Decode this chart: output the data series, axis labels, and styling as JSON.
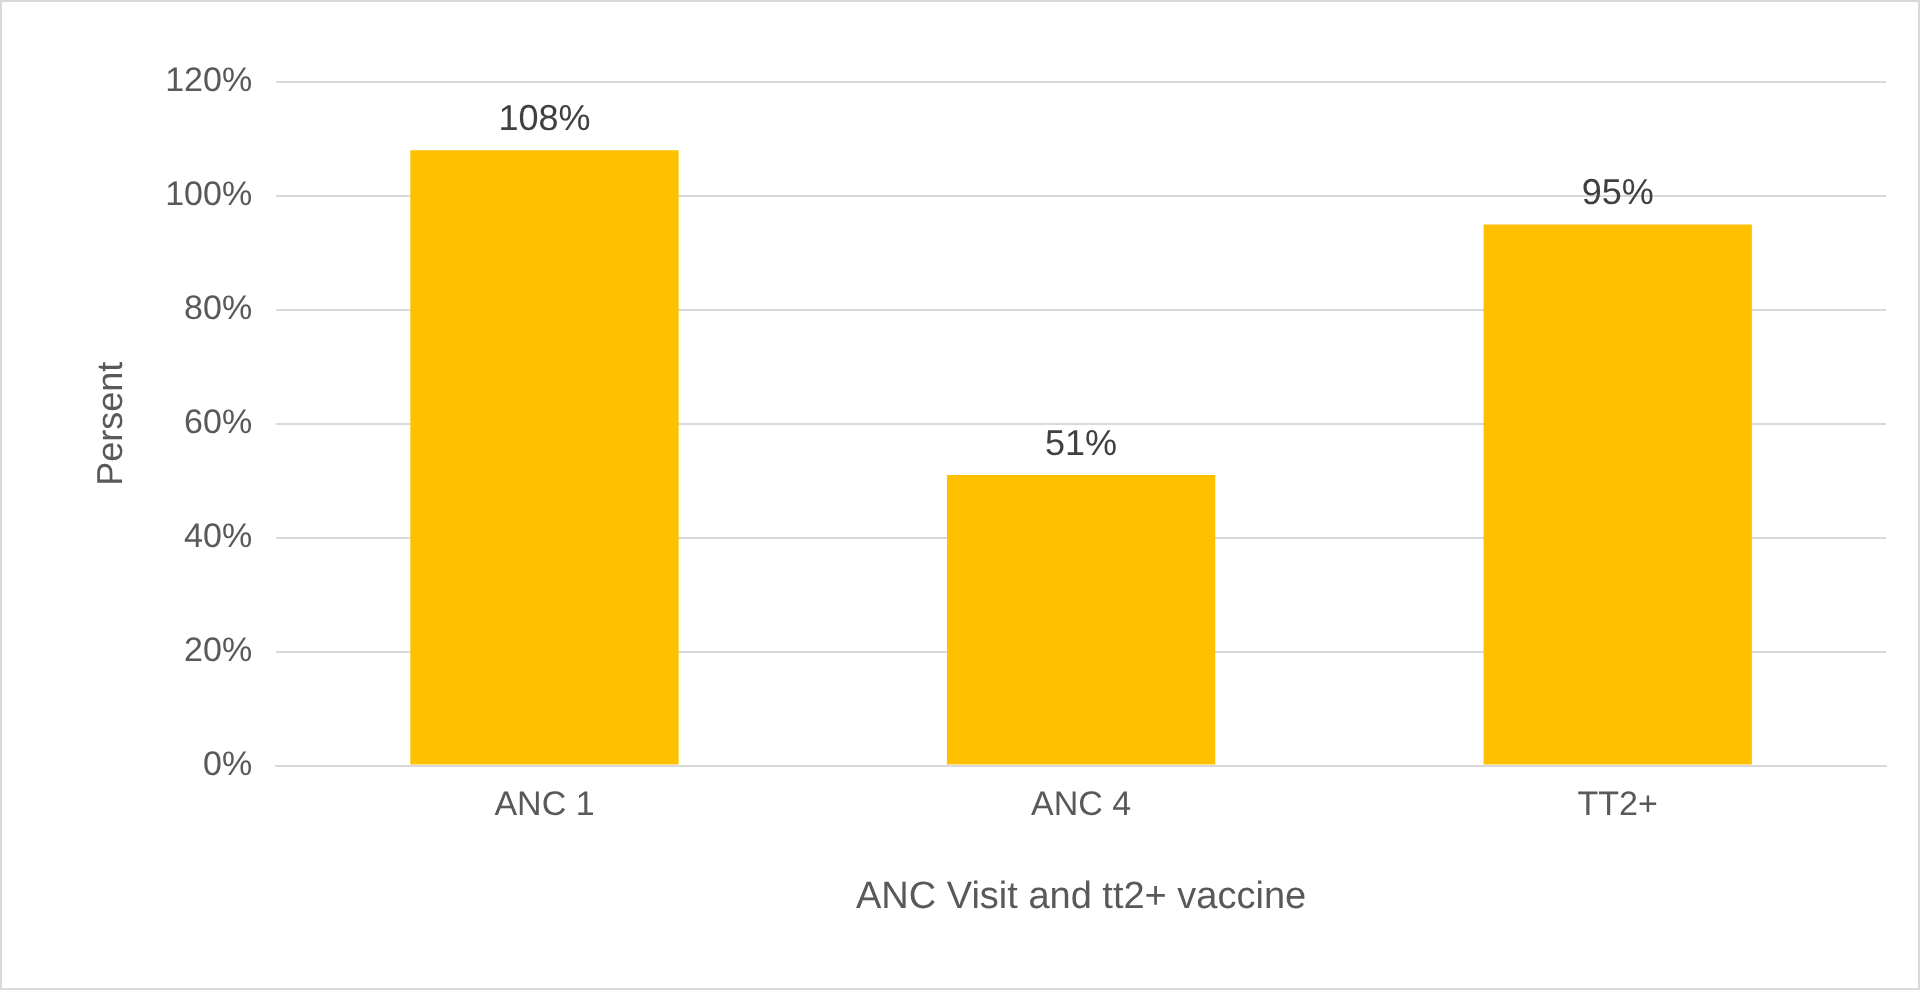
{
  "chart_data": {
    "type": "bar",
    "xlabel": "ANC Visit and tt2+ vaccine",
    "ylabel": "Persent",
    "categories": [
      "ANC 1",
      "ANC 4",
      "TT2+"
    ],
    "values": [
      108,
      51,
      95
    ],
    "color": "#ffc000",
    "value_labels": [
      "108%",
      "51%",
      "95%"
    ],
    "ylim": [
      0,
      120
    ],
    "yticks": [
      {
        "value": 0,
        "label": "0%"
      },
      {
        "value": 20,
        "label": "20%"
      },
      {
        "value": 40,
        "label": "40%"
      },
      {
        "value": 60,
        "label": "60%"
      },
      {
        "value": 80,
        "label": "80%"
      },
      {
        "value": 100,
        "label": "100%"
      },
      {
        "value": 120,
        "label": "120%"
      }
    ],
    "grid": "y"
  }
}
